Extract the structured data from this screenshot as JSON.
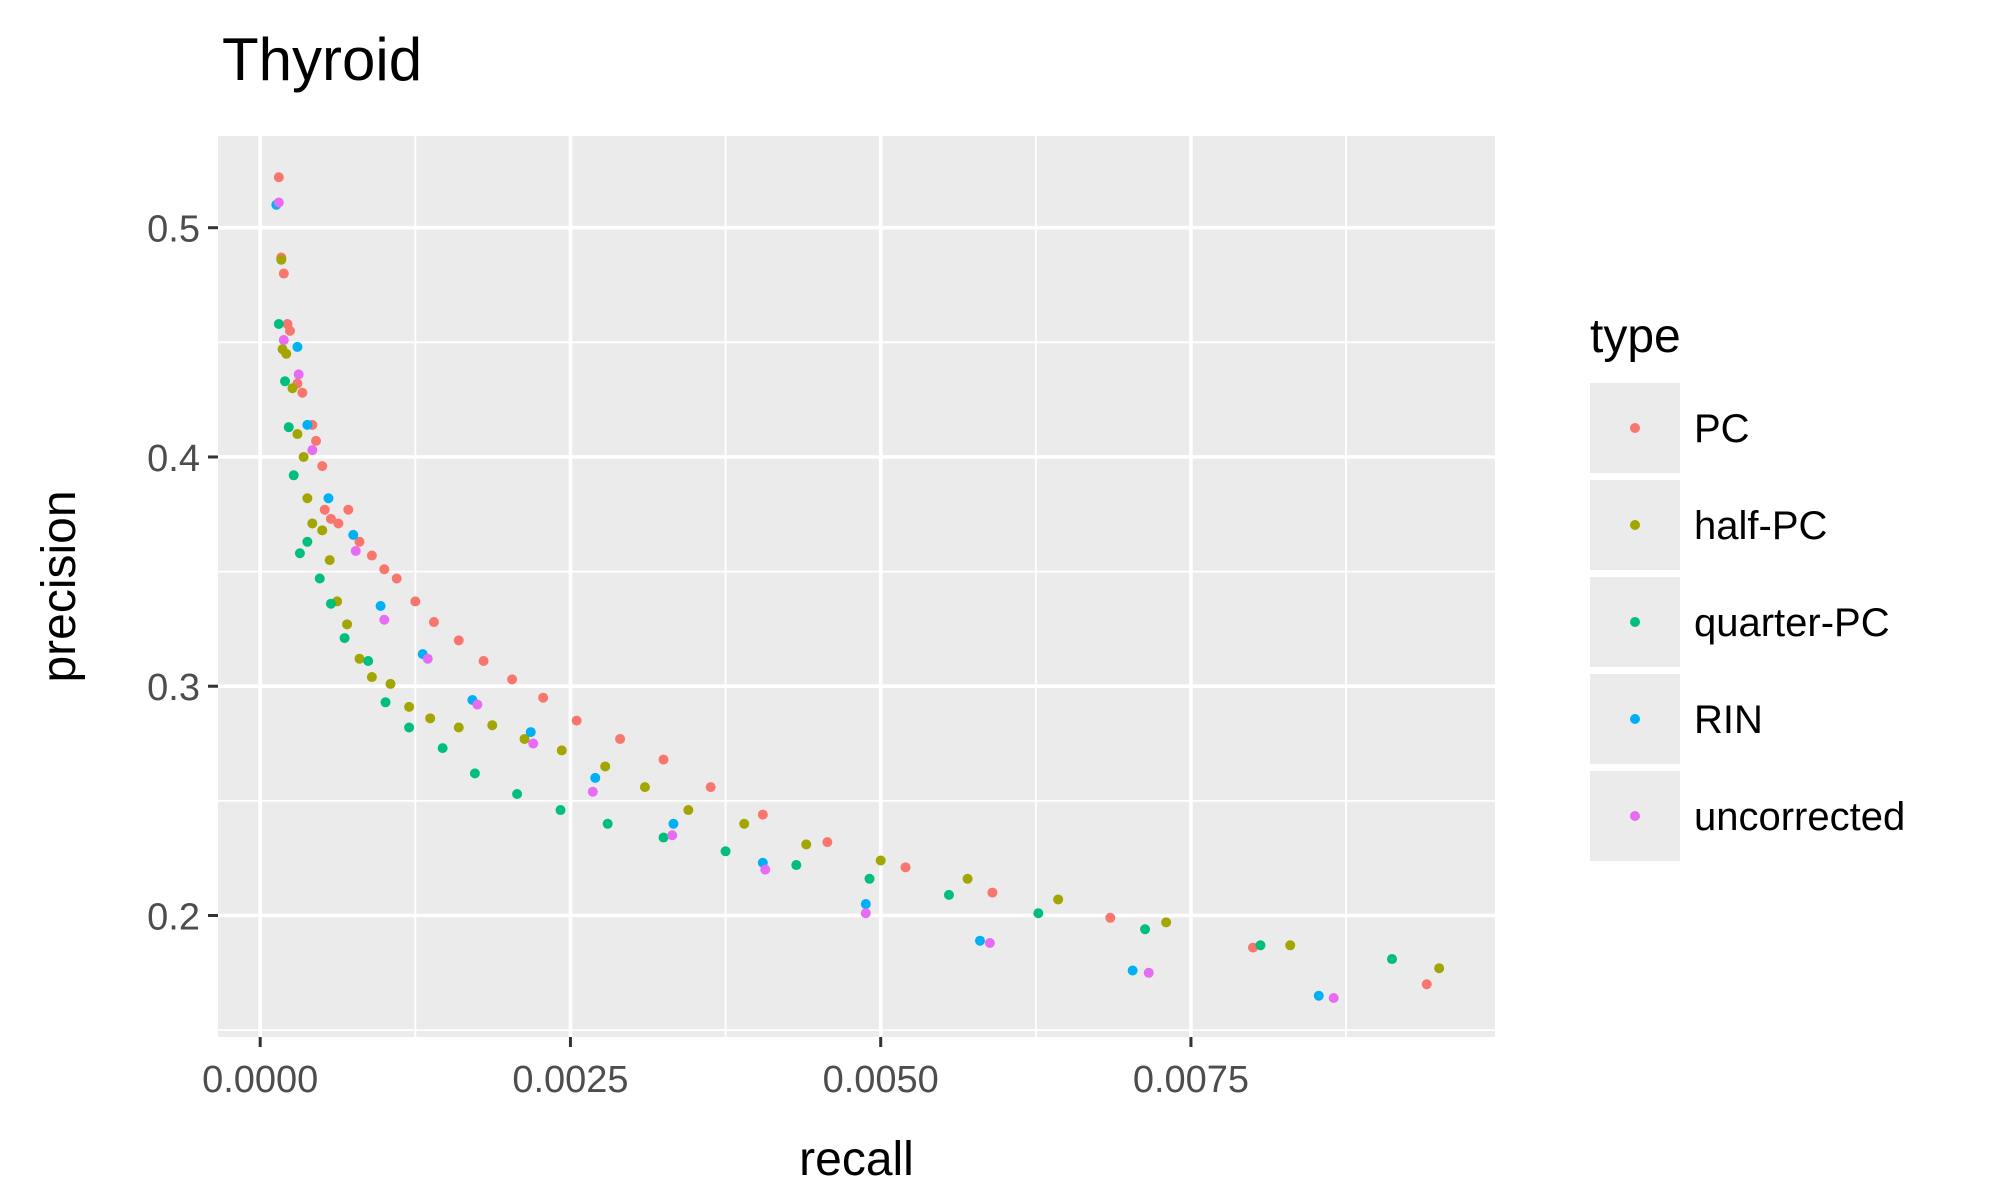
{
  "chart_data": {
    "type": "scatter",
    "title": "Thyroid",
    "xlabel": "recall",
    "ylabel": "precision",
    "xlim": [
      -0.00034,
      0.00995
    ],
    "ylim": [
      0.147,
      0.54
    ],
    "x_ticks": [
      0.0,
      0.0025,
      0.005,
      0.0075
    ],
    "x_tick_labels": [
      "0.0000",
      "0.0025",
      "0.0050",
      "0.0075"
    ],
    "y_ticks": [
      0.2,
      0.3,
      0.4,
      0.5
    ],
    "y_tick_labels": [
      "0.2",
      "0.3",
      "0.4",
      "0.5"
    ],
    "grid": true,
    "legend": {
      "title": "type",
      "position": "right"
    },
    "series": [
      {
        "name": "PC",
        "color": "#F8766D",
        "points": [
          [
            0.00015,
            0.522
          ],
          [
            0.00017,
            0.487
          ],
          [
            0.00019,
            0.48
          ],
          [
            0.00022,
            0.458
          ],
          [
            0.00024,
            0.455
          ],
          [
            0.0003,
            0.432
          ],
          [
            0.00034,
            0.428
          ],
          [
            0.00042,
            0.414
          ],
          [
            0.00045,
            0.407
          ],
          [
            0.0005,
            0.396
          ],
          [
            0.00052,
            0.377
          ],
          [
            0.00057,
            0.373
          ],
          [
            0.00063,
            0.371
          ],
          [
            0.00071,
            0.377
          ],
          [
            0.0008,
            0.363
          ],
          [
            0.0009,
            0.357
          ],
          [
            0.001,
            0.351
          ],
          [
            0.0011,
            0.347
          ],
          [
            0.00125,
            0.337
          ],
          [
            0.0014,
            0.328
          ],
          [
            0.0016,
            0.32
          ],
          [
            0.0018,
            0.311
          ],
          [
            0.00203,
            0.303
          ],
          [
            0.00228,
            0.295
          ],
          [
            0.00255,
            0.285
          ],
          [
            0.0029,
            0.277
          ],
          [
            0.00325,
            0.268
          ],
          [
            0.00363,
            0.256
          ],
          [
            0.00405,
            0.244
          ],
          [
            0.00457,
            0.232
          ],
          [
            0.0052,
            0.221
          ],
          [
            0.0059,
            0.21
          ],
          [
            0.00685,
            0.199
          ],
          [
            0.008,
            0.186
          ],
          [
            0.0094,
            0.17
          ]
        ]
      },
      {
        "name": "half-PC",
        "color": "#A3A500",
        "points": [
          [
            0.00017,
            0.486
          ],
          [
            0.00018,
            0.447
          ],
          [
            0.00021,
            0.445
          ],
          [
            0.00026,
            0.43
          ],
          [
            0.0003,
            0.41
          ],
          [
            0.00035,
            0.4
          ],
          [
            0.00038,
            0.382
          ],
          [
            0.00042,
            0.371
          ],
          [
            0.0005,
            0.368
          ],
          [
            0.00056,
            0.355
          ],
          [
            0.00062,
            0.337
          ],
          [
            0.0007,
            0.327
          ],
          [
            0.0008,
            0.312
          ],
          [
            0.0009,
            0.304
          ],
          [
            0.00105,
            0.301
          ],
          [
            0.0012,
            0.291
          ],
          [
            0.00137,
            0.286
          ],
          [
            0.0016,
            0.282
          ],
          [
            0.00187,
            0.283
          ],
          [
            0.00213,
            0.277
          ],
          [
            0.00243,
            0.272
          ],
          [
            0.00278,
            0.265
          ],
          [
            0.0031,
            0.256
          ],
          [
            0.00345,
            0.246
          ],
          [
            0.0039,
            0.24
          ],
          [
            0.0044,
            0.231
          ],
          [
            0.005,
            0.224
          ],
          [
            0.0057,
            0.216
          ],
          [
            0.00643,
            0.207
          ],
          [
            0.0073,
            0.197
          ],
          [
            0.0083,
            0.187
          ],
          [
            0.0095,
            0.177
          ]
        ]
      },
      {
        "name": "quarter-PC",
        "color": "#00BF7D",
        "points": [
          [
            0.00015,
            0.458
          ],
          [
            0.0002,
            0.433
          ],
          [
            0.00023,
            0.413
          ],
          [
            0.00027,
            0.392
          ],
          [
            0.00032,
            0.358
          ],
          [
            0.00038,
            0.363
          ],
          [
            0.00048,
            0.347
          ],
          [
            0.00057,
            0.336
          ],
          [
            0.00068,
            0.321
          ],
          [
            0.00087,
            0.311
          ],
          [
            0.00101,
            0.293
          ],
          [
            0.0012,
            0.282
          ],
          [
            0.00147,
            0.273
          ],
          [
            0.00173,
            0.262
          ],
          [
            0.00207,
            0.253
          ],
          [
            0.00242,
            0.246
          ],
          [
            0.0028,
            0.24
          ],
          [
            0.00325,
            0.234
          ],
          [
            0.00375,
            0.228
          ],
          [
            0.00432,
            0.222
          ],
          [
            0.00491,
            0.216
          ],
          [
            0.00555,
            0.209
          ],
          [
            0.00627,
            0.201
          ],
          [
            0.00713,
            0.194
          ],
          [
            0.00806,
            0.187
          ],
          [
            0.00912,
            0.181
          ]
        ]
      },
      {
        "name": "RIN",
        "color": "#00B0F6",
        "points": [
          [
            0.00013,
            0.51
          ],
          [
            0.0003,
            0.448
          ],
          [
            0.00038,
            0.414
          ],
          [
            0.00055,
            0.382
          ],
          [
            0.00075,
            0.366
          ],
          [
            0.00097,
            0.335
          ],
          [
            0.00131,
            0.314
          ],
          [
            0.00171,
            0.294
          ],
          [
            0.00218,
            0.28
          ],
          [
            0.0027,
            0.26
          ],
          [
            0.00333,
            0.24
          ],
          [
            0.00405,
            0.223
          ],
          [
            0.00488,
            0.205
          ],
          [
            0.0058,
            0.189
          ],
          [
            0.00703,
            0.176
          ],
          [
            0.00853,
            0.165
          ]
        ]
      },
      {
        "name": "uncorrected",
        "color": "#E76BF3",
        "points": [
          [
            0.00015,
            0.511
          ],
          [
            0.00019,
            0.451
          ],
          [
            0.00031,
            0.436
          ],
          [
            0.00042,
            0.403
          ],
          [
            0.00077,
            0.359
          ],
          [
            0.001,
            0.329
          ],
          [
            0.00135,
            0.312
          ],
          [
            0.00175,
            0.292
          ],
          [
            0.0022,
            0.275
          ],
          [
            0.00268,
            0.254
          ],
          [
            0.00332,
            0.235
          ],
          [
            0.00407,
            0.22
          ],
          [
            0.00488,
            0.201
          ],
          [
            0.00588,
            0.188
          ],
          [
            0.00716,
            0.175
          ],
          [
            0.00865,
            0.164
          ]
        ]
      }
    ]
  }
}
